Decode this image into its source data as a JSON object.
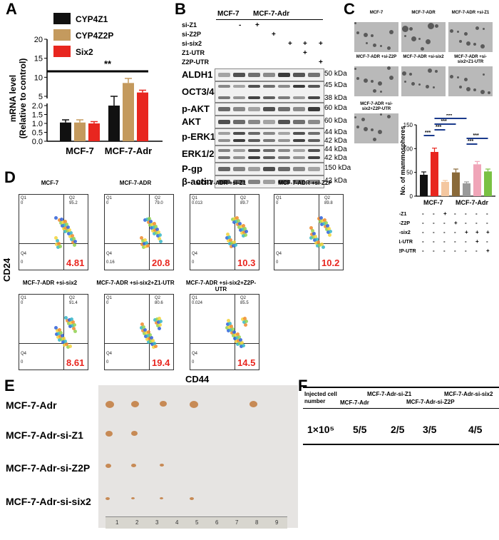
{
  "panels": {
    "A": "A",
    "B": "B",
    "C": "C",
    "D": "D",
    "E": "E",
    "F": "F"
  },
  "chart_data": {
    "type": "bar",
    "ylabel": "mRNA level (Relative to control)",
    "categories": [
      "MCF-7",
      "MCF-7-Adr"
    ],
    "series": [
      {
        "name": "CYP4Z1",
        "values": [
          1.05,
          2.0
        ],
        "errors": [
          0.15,
          0.4
        ],
        "color": "#111111"
      },
      {
        "name": "CYP4Z2P",
        "values": [
          1.05,
          8.5
        ],
        "errors": [
          0.15,
          1.2
        ],
        "color": "#c49a5e"
      },
      {
        "name": "Six2",
        "values": [
          1.0,
          6.0
        ],
        "errors": [
          0.1,
          0.6
        ],
        "color": "#e8261f"
      }
    ],
    "yticks_low": [
      "0.0",
      "0.5",
      "1.0",
      "1.5",
      "2.0"
    ],
    "yticks_high": [
      "5",
      "10",
      "15",
      "20"
    ],
    "annotation": "**"
  },
  "wb": {
    "groups": [
      "MCF-7",
      "MCF-7-Adr"
    ],
    "treatments": [
      {
        "label": "si-Z1",
        "marks": [
          "",
          "-",
          "+",
          "",
          "",
          "",
          ""
        ]
      },
      {
        "label": "si-Z2P",
        "marks": [
          "",
          "",
          "",
          "+",
          "",
          "",
          ""
        ]
      },
      {
        "label": "si-six2",
        "marks": [
          "",
          "",
          "",
          "",
          "+",
          "+",
          "+"
        ]
      },
      {
        "label": "Z1-UTR",
        "marks": [
          "",
          "",
          "",
          "",
          "",
          "+",
          ""
        ]
      },
      {
        "label": "Z2P-UTR",
        "marks": [
          "",
          "",
          "",
          "",
          "",
          "",
          "+"
        ]
      }
    ],
    "rows": [
      {
        "label": "ALDH1",
        "kda": [
          "50 kDa"
        ]
      },
      {
        "label": "OCT3/4",
        "kda": [
          "45 kDa",
          "38 kDa"
        ]
      },
      {
        "label": "p-AKT",
        "kda": [
          "60 kDa"
        ]
      },
      {
        "label": "AKT",
        "kda": [
          "60 kDa"
        ]
      },
      {
        "label": "p-ERK1/2",
        "kda": [
          "44 kDa",
          "42 kDa"
        ]
      },
      {
        "label": "ERK1/2",
        "kda": [
          "44 kDa",
          "42 kDa"
        ]
      },
      {
        "label": "P-gp",
        "kda": [
          "150 kDa"
        ]
      },
      {
        "label": "β-actin",
        "kda": [
          "42 kDa"
        ]
      }
    ]
  },
  "sphere": {
    "images": [
      "MCF-7",
      "MCF-7-ADR",
      "MCF-7-ADR +si-Z1",
      "MCF-7-ADR +si-Z2P",
      "MCF-7-ADR +si-six2",
      "MCF-7-ADR +si-six2+Z1-UTR",
      "MCF-7-ADR +si-six2+Z2P-UTR"
    ],
    "ylabel": "No. of mammospheres",
    "yticks": [
      "0",
      "50",
      "100",
      "150"
    ],
    "xgroups": [
      "MCF-7",
      "MCF-7-Adr"
    ],
    "bars": [
      {
        "value": 45,
        "err": 6,
        "color": "#111111"
      },
      {
        "value": 93,
        "err": 8,
        "color": "#e8261f"
      },
      {
        "value": 30,
        "err": 3,
        "color": "#f4c7a0"
      },
      {
        "value": 50,
        "err": 7,
        "color": "#8a6a3a"
      },
      {
        "value": 27,
        "err": 3,
        "color": "#9a9a9a"
      },
      {
        "value": 67,
        "err": 6,
        "color": "#f0a5b8"
      },
      {
        "value": 52,
        "err": 5,
        "color": "#7ac143"
      }
    ],
    "stars": "***",
    "treatments": [
      {
        "label": "si-Z1",
        "marks": [
          "-",
          "-",
          "+",
          "-",
          "-",
          "-",
          "-"
        ]
      },
      {
        "label": "si-Z2P",
        "marks": [
          "-",
          "-",
          "-",
          "+",
          "-",
          "-",
          "-"
        ]
      },
      {
        "label": "si-six2",
        "marks": [
          "-",
          "-",
          "-",
          "-",
          "+",
          "+",
          "+"
        ]
      },
      {
        "label": "Z1-UTR",
        "marks": [
          "-",
          "-",
          "-",
          "-",
          "-",
          "+",
          "-"
        ]
      },
      {
        "label": "Z2P-UTR",
        "marks": [
          "-",
          "-",
          "-",
          "-",
          "-",
          "-",
          "+"
        ]
      }
    ]
  },
  "flow": {
    "ylabel": "CD24",
    "xlabel": "CD44",
    "plots": [
      {
        "title": "MCF-7",
        "q1": "Q1",
        "q1v": "0",
        "q2": "Q2",
        "q2v": "95.2",
        "q3": "4.81",
        "q4": "Q4",
        "q4v": "0"
      },
      {
        "title": "MCF-7-ADR",
        "q1": "Q1",
        "q1v": "0",
        "q2": "Q2",
        "q2v": "79.0",
        "q3": "20.8",
        "q4": "Q4",
        "q4v": "0.16"
      },
      {
        "title": "MCF-7-ADR +si-Z1",
        "q1": "Q1",
        "q1v": "0.013",
        "q2": "Q2",
        "q2v": "89.7",
        "q3": "10.3",
        "q4": "Q4",
        "q4v": "0"
      },
      {
        "title": "MCF-7-ADR +si-Z2P",
        "q1": "Q1",
        "q1v": "0",
        "q2": "Q2",
        "q2v": "89.8",
        "q3": "10.2",
        "q4": "Q4",
        "q4v": "0"
      },
      {
        "title": "MCF-7-ADR +si-six2",
        "q1": "Q1",
        "q1v": "0",
        "q2": "Q2",
        "q2v": "91.4",
        "q3": "8.61",
        "q4": "Q4",
        "q4v": "0"
      },
      {
        "title": "MCF-7-ADR +si-six2+Z1-UTR",
        "q1": "Q1",
        "q1v": "0",
        "q2": "Q2",
        "q2v": "80.6",
        "q3": "19.4",
        "q4": "Q4",
        "q4v": "0"
      },
      {
        "title": "MCF-7-ADR +si-six2+Z2P-UTR",
        "q1": "Q1",
        "q1v": "0.024",
        "q2": "Q2",
        "q2v": "85.5",
        "q3": "14.5",
        "q4": "Q4",
        "q4v": "0"
      }
    ]
  },
  "tumor": {
    "rows": [
      "MCF-7-Adr",
      "MCF-7-Adr-si-Z1",
      "MCF-7-Adr-si-Z2P",
      "MCF-7-Adr-si-six2"
    ],
    "counts": [
      5,
      2,
      3,
      4
    ],
    "ruler": [
      "1",
      "2",
      "3",
      "4",
      "5",
      "6",
      "7",
      "8",
      "9"
    ]
  },
  "table": {
    "col0": "Injected cell number",
    "cols": [
      "MCF-7-Adr",
      "MCF-7-Adr-si-Z1",
      "MCF-7-Adr-si-Z2P",
      "MCF-7-Adr-si-six2"
    ],
    "row_label": "1×10⁵",
    "values": [
      "5/5",
      "2/5",
      "3/5",
      "4/5"
    ]
  }
}
